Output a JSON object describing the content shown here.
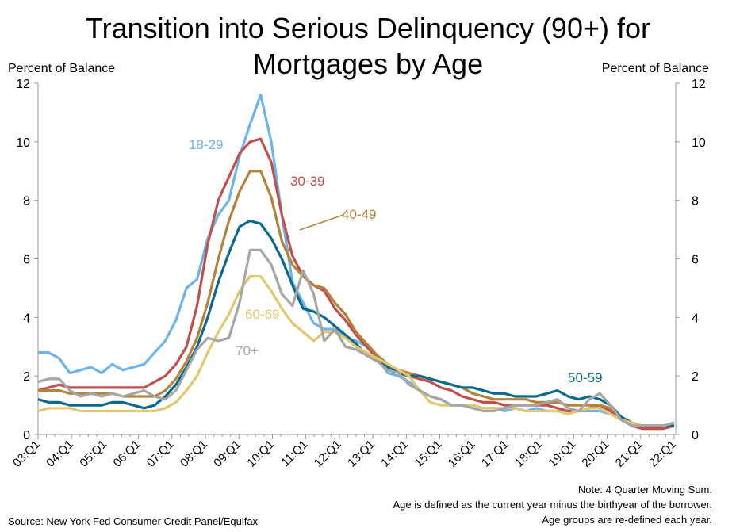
{
  "chart_data": {
    "type": "line",
    "title": "Transition into Serious Delinquency (90+) for Mortgages by Age",
    "title_lines": [
      "Transition into Serious Delinquency (90+) for",
      "Mortgages by Age"
    ],
    "ylabel_left": "Percent of Balance",
    "ylabel_right": "Percent of Balance",
    "ylim": [
      0,
      12
    ],
    "yticks": [
      0,
      2,
      4,
      6,
      8,
      10,
      12
    ],
    "x_tick_labels": [
      "03:Q1",
      "04:Q1",
      "05:Q1",
      "06:Q1",
      "07:Q1",
      "08:Q1",
      "09:Q1",
      "10:Q1",
      "11:Q1",
      "12:Q1",
      "13:Q1",
      "14:Q1",
      "15:Q1",
      "16:Q1",
      "17:Q1",
      "18:Q1",
      "19:Q1",
      "20:Q1",
      "21:Q1",
      "22:Q1"
    ],
    "x_start_year": 2003,
    "x_end_year": 2022,
    "grid": false,
    "legend": "direct labels",
    "series": [
      {
        "name": "18-29",
        "color": "#6cb4ea",
        "values": [
          2.8,
          2.8,
          2.6,
          2.1,
          2.2,
          2.3,
          2.1,
          2.4,
          2.2,
          2.3,
          2.4,
          2.8,
          3.2,
          3.9,
          5.0,
          5.3,
          6.7,
          7.5,
          8.0,
          9.5,
          10.6,
          11.6,
          10.0,
          7.5,
          5.2,
          4.5,
          3.8,
          3.6,
          3.6,
          3.3,
          3.2,
          3.0,
          2.6,
          2.1,
          2.0,
          1.8,
          1.5,
          1.3,
          1.2,
          1.0,
          1.0,
          1.0,
          0.9,
          0.9,
          0.8,
          0.9,
          0.8,
          0.9,
          0.8,
          0.8,
          0.8,
          0.8,
          0.8,
          0.8,
          0.7,
          0.5,
          0.3,
          0.2,
          0.2,
          0.2,
          0.3
        ]
      },
      {
        "name": "30-39",
        "color": "#c0504d",
        "values": [
          1.5,
          1.6,
          1.7,
          1.6,
          1.6,
          1.6,
          1.6,
          1.6,
          1.6,
          1.6,
          1.6,
          1.8,
          2.0,
          2.4,
          3.0,
          4.4,
          6.5,
          8.0,
          8.8,
          9.6,
          10.0,
          10.1,
          9.3,
          7.5,
          6.1,
          5.4,
          5.1,
          4.9,
          4.3,
          3.9,
          3.4,
          3.0,
          2.6,
          2.3,
          2.1,
          2.0,
          1.9,
          1.8,
          1.6,
          1.5,
          1.3,
          1.2,
          1.1,
          1.1,
          1.0,
          1.0,
          1.0,
          1.0,
          1.0,
          0.9,
          0.8,
          0.8,
          0.9,
          1.0,
          0.8,
          0.5,
          0.3,
          0.2,
          0.2,
          0.2,
          0.3
        ]
      },
      {
        "name": "40-49",
        "color": "#b5823a",
        "values": [
          1.5,
          1.5,
          1.5,
          1.4,
          1.4,
          1.4,
          1.4,
          1.4,
          1.3,
          1.3,
          1.3,
          1.3,
          1.5,
          1.9,
          2.5,
          3.3,
          4.5,
          6.0,
          7.3,
          8.3,
          9.0,
          9.0,
          8.1,
          6.6,
          5.8,
          5.4,
          5.1,
          5.0,
          4.5,
          4.1,
          3.5,
          3.1,
          2.7,
          2.4,
          2.2,
          2.1,
          2.0,
          1.9,
          1.8,
          1.7,
          1.6,
          1.4,
          1.3,
          1.2,
          1.2,
          1.2,
          1.2,
          1.1,
          1.1,
          1.1,
          1.0,
          1.0,
          1.0,
          1.0,
          0.9,
          0.6,
          0.4,
          0.3,
          0.3,
          0.3,
          0.4
        ]
      },
      {
        "name": "50-59",
        "color": "#0a6a8c",
        "values": [
          1.2,
          1.1,
          1.1,
          1.0,
          1.0,
          1.0,
          1.0,
          1.1,
          1.1,
          1.0,
          0.9,
          1.0,
          1.3,
          1.7,
          2.3,
          3.0,
          4.0,
          5.2,
          6.2,
          7.1,
          7.3,
          7.2,
          6.7,
          6.0,
          5.1,
          4.3,
          4.2,
          4.0,
          3.7,
          3.4,
          3.1,
          2.7,
          2.5,
          2.3,
          2.1,
          2.0,
          2.0,
          1.9,
          1.8,
          1.7,
          1.6,
          1.6,
          1.5,
          1.4,
          1.4,
          1.3,
          1.3,
          1.3,
          1.4,
          1.5,
          1.3,
          1.2,
          1.3,
          1.2,
          1.0,
          0.6,
          0.4,
          0.3,
          0.3,
          0.3,
          0.3
        ]
      },
      {
        "name": "60-69",
        "color": "#e3c76e",
        "values": [
          0.8,
          0.9,
          0.9,
          0.9,
          0.8,
          0.8,
          0.8,
          0.8,
          0.8,
          0.8,
          0.8,
          0.8,
          0.9,
          1.1,
          1.5,
          2.0,
          2.8,
          3.5,
          4.1,
          4.9,
          5.4,
          5.4,
          4.9,
          4.3,
          3.8,
          3.5,
          3.2,
          3.5,
          3.5,
          3.3,
          3.0,
          2.8,
          2.6,
          2.4,
          2.2,
          2.0,
          1.5,
          1.1,
          1.0,
          1.0,
          1.0,
          1.0,
          0.9,
          0.9,
          0.9,
          0.9,
          0.8,
          0.8,
          0.8,
          0.8,
          0.7,
          0.8,
          0.9,
          0.9,
          0.7,
          0.5,
          0.4,
          0.3,
          0.3,
          0.3,
          0.4
        ]
      },
      {
        "name": "70+",
        "color": "#a6a6a6",
        "values": [
          1.8,
          1.9,
          1.9,
          1.5,
          1.3,
          1.4,
          1.3,
          1.4,
          1.3,
          1.4,
          1.5,
          1.3,
          1.2,
          1.5,
          2.2,
          2.9,
          3.3,
          3.2,
          3.3,
          4.5,
          6.3,
          6.3,
          5.8,
          4.8,
          4.4,
          5.6,
          4.8,
          3.2,
          3.6,
          3.0,
          2.9,
          2.7,
          2.5,
          2.2,
          2.1,
          1.7,
          1.5,
          1.3,
          1.2,
          1.0,
          1.0,
          0.9,
          0.8,
          0.8,
          0.9,
          1.0,
          1.0,
          1.0,
          1.1,
          1.2,
          0.9,
          0.8,
          1.2,
          1.4,
          1.0,
          0.5,
          0.3,
          0.3,
          0.3,
          0.3,
          0.4
        ]
      }
    ],
    "annotations": [
      {
        "text": "18-29",
        "color": "#6cb4ea"
      },
      {
        "text": "30-39",
        "color": "#c0504d"
      },
      {
        "text": "40-49",
        "color": "#b5823a"
      },
      {
        "text": "50-59",
        "color": "#0a6a8c"
      },
      {
        "text": "60-69",
        "color": "#e3c76e"
      },
      {
        "text": "70+",
        "color": "#a6a6a6"
      }
    ]
  },
  "source": "Source: New York Fed Consumer Credit Panel/Equifax",
  "notes": [
    "Note: 4 Quarter Moving Sum.",
    "Age is defined as the current year minus the birthyear of the borrower.",
    "Age groups are re-defined each year."
  ]
}
